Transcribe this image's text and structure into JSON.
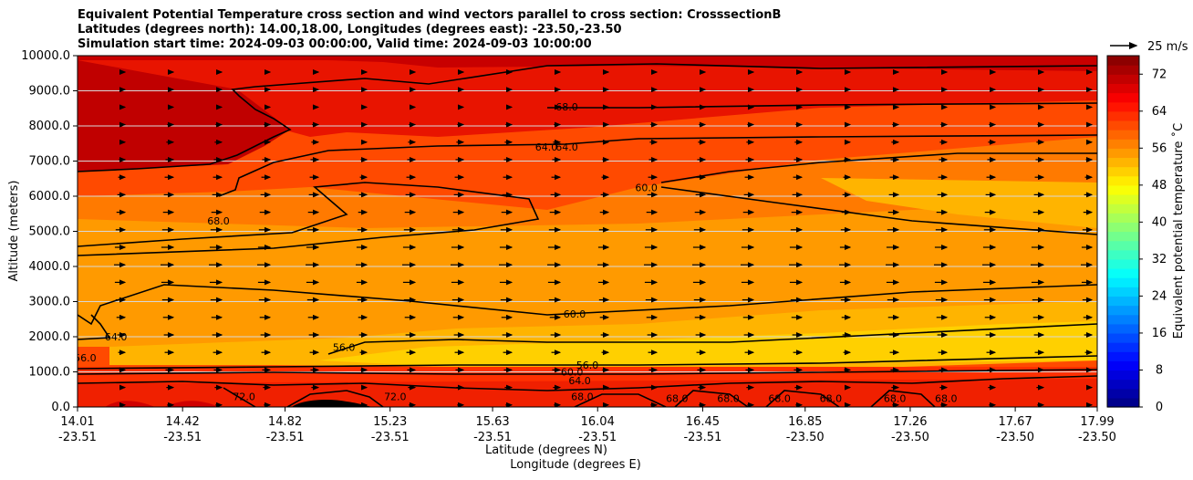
{
  "chart_data": {
    "type": "contour",
    "title": "Equivalent Potential Temperature cross section and wind vectors parallel to cross section: CrosssectionB",
    "subtitle1": "Latitudes (degrees north): 14.00,18.00, Longitudes (degrees east): -23.50,-23.50",
    "subtitle2": "Simulation start time: 2024-09-03 00:00:00, Valid time: 2024-09-03 10:00:00",
    "xlabel_lat": "Latitude (degrees N)",
    "xlabel_lon": "Longitude (degrees E)",
    "ylabel": "Altitude (meters)",
    "colorbar_label": "Equivalent potential temperature ˚C",
    "quiver_key": "25 m/s",
    "ylim": [
      0,
      10000
    ],
    "colorbar_range": [
      0,
      76
    ],
    "colorbar_ticks": [
      "0",
      "8",
      "16",
      "24",
      "32",
      "40",
      "48",
      "56",
      "64",
      "72"
    ],
    "colorbar_tick_values": [
      0,
      8,
      16,
      24,
      32,
      40,
      48,
      56,
      64,
      72
    ],
    "y_ticks": [
      "0.0",
      "1000.0",
      "2000.0",
      "3000.0",
      "4000.0",
      "5000.0",
      "6000.0",
      "7000.0",
      "8000.0",
      "9000.0",
      "10000.0"
    ],
    "y_tick_values": [
      0,
      1000,
      2000,
      3000,
      4000,
      5000,
      6000,
      7000,
      8000,
      9000,
      10000
    ],
    "x_tick_lat": [
      "14.01",
      "14.42",
      "14.82",
      "15.23",
      "15.63",
      "16.04",
      "16.45",
      "16.85",
      "17.26",
      "17.67",
      "17.99"
    ],
    "x_tick_lon": [
      "-23.51",
      "-23.51",
      "-23.51",
      "-23.51",
      "-23.51",
      "-23.51",
      "-23.51",
      "-23.50",
      "-23.50",
      "-23.50",
      "-23.50"
    ],
    "x_tick_values": [
      14.01,
      14.42,
      14.82,
      15.23,
      15.63,
      16.04,
      16.45,
      16.85,
      17.26,
      17.67,
      17.99
    ],
    "xlim": [
      14.01,
      17.99
    ],
    "grid": "horizontal",
    "contour_levels": [
      {
        "label": "56.0",
        "lat": 15.05,
        "alt": 1700
      },
      {
        "label": "56.0",
        "lat": 16.0,
        "alt": 1200
      },
      {
        "label": "60.0",
        "lat": 15.95,
        "alt": 2650
      },
      {
        "label": "60.0",
        "lat": 15.94,
        "alt": 1000
      },
      {
        "label": "64.0",
        "lat": 15.97,
        "alt": 750
      },
      {
        "label": "68.0",
        "lat": 15.98,
        "alt": 300
      },
      {
        "label": "64.0",
        "lat": 15.84,
        "alt": 7400
      },
      {
        "label": "64.0",
        "lat": 15.92,
        "alt": 7400
      },
      {
        "label": "68.0",
        "lat": 15.92,
        "alt": 8550
      },
      {
        "label": "60.0",
        "lat": 16.23,
        "alt": 6250
      },
      {
        "label": "68.0",
        "lat": 14.56,
        "alt": 5300
      },
      {
        "label": "64.0",
        "lat": 14.16,
        "alt": 2000
      },
      {
        "label": "56.0",
        "lat": 14.04,
        "alt": 1400
      },
      {
        "label": "72.0",
        "lat": 14.66,
        "alt": 300
      },
      {
        "label": "72.0",
        "lat": 15.25,
        "alt": 300
      },
      {
        "label": "68.0",
        "lat": 16.35,
        "alt": 250
      },
      {
        "label": "68.0",
        "lat": 16.55,
        "alt": 250
      },
      {
        "label": "68.0",
        "lat": 16.75,
        "alt": 250
      },
      {
        "label": "68.0",
        "lat": 16.95,
        "alt": 250
      },
      {
        "label": "68.0",
        "lat": 17.2,
        "alt": 250
      },
      {
        "label": "68.0",
        "lat": 17.4,
        "alt": 250
      }
    ]
  }
}
